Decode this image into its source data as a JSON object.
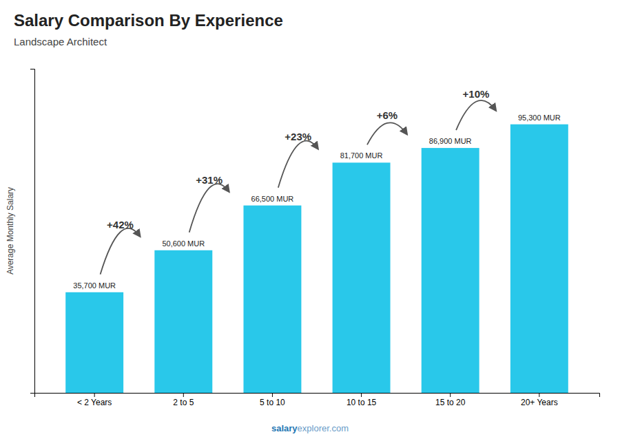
{
  "chart_data": {
    "type": "bar",
    "title": "Salary Comparison By Experience",
    "subtitle": "Landscape Architect",
    "ylabel": "Average Monthly Salary",
    "categories": [
      "< 2 Years",
      "2 to 5",
      "5 to 10",
      "10 to 15",
      "15 to 20",
      "20+ Years"
    ],
    "values": [
      35700,
      50600,
      66500,
      81700,
      86900,
      95300
    ],
    "value_labels": [
      "35,700 MUR",
      "50,600 MUR",
      "66,500 MUR",
      "81,700 MUR",
      "86,900 MUR",
      "95,300 MUR"
    ],
    "data_labels": true,
    "annotations": [
      "+42%",
      "+31%",
      "+23%",
      "+6%",
      "+10%"
    ],
    "footer": [
      "salary",
      "explorer.com"
    ],
    "color": "#29c8ea",
    "ylim": [
      0,
      115000
    ],
    "tick_labels": "x",
    "grid": false
  }
}
